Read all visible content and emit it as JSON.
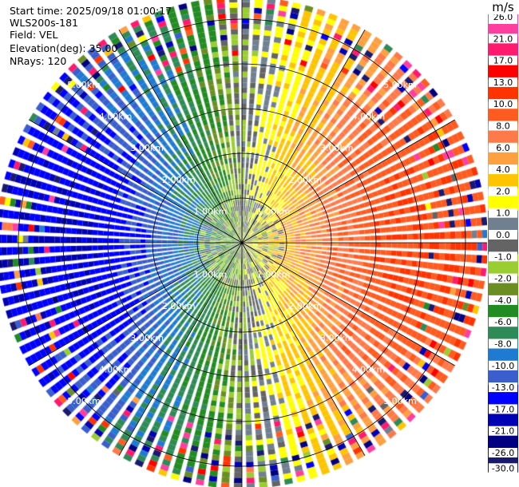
{
  "info": {
    "start_time": "Start time: 2025/09/18 01:00:17",
    "instrument": "WLS200s-181",
    "field": "Field: VEL",
    "elevation": "Elevation(deg): 35.00",
    "nrays": "NRays: 120"
  },
  "chart_data": {
    "type": "heatmap",
    "projection": "polar PPI",
    "field": "VEL",
    "units": "m/s",
    "elevation_deg": 35.0,
    "n_rays": 120,
    "max_range_km": 5.5,
    "range_rings_km": [
      1,
      2,
      3,
      4,
      5
    ],
    "range_ring_labels": [
      "1.00km",
      "2.00km",
      "3.00km",
      "4.00km",
      "5.00km"
    ],
    "spokes_deg": [
      0,
      30,
      60,
      90,
      120,
      150,
      180,
      210,
      240,
      270,
      300,
      330
    ],
    "colorbar": {
      "label": "m/s",
      "ticks": [
        "26.0",
        "21.0",
        "17.0",
        "13.0",
        "10.0",
        "8.0",
        "6.0",
        "4.0",
        "2.0",
        "1.0",
        "0.0",
        "-1.0",
        "-2.0",
        "-4.0",
        "-6.0",
        "-8.0",
        "-10.0",
        "-13.0",
        "-17.0",
        "-21.0",
        "-26.0",
        "-30.0"
      ],
      "bins": [
        {
          "min": 26.0,
          "color": "#ff3fa0"
        },
        {
          "min": 21.0,
          "color": "#ff1a6e"
        },
        {
          "min": 17.0,
          "color": "#ff0000"
        },
        {
          "min": 13.0,
          "color": "#ff3300"
        },
        {
          "min": 10.0,
          "color": "#ff5a1f"
        },
        {
          "min": 8.0,
          "color": "#ff7a4a"
        },
        {
          "min": 6.0,
          "color": "#ffa040"
        },
        {
          "min": 4.0,
          "color": "#ffc400"
        },
        {
          "min": 2.0,
          "color": "#ffff00"
        },
        {
          "min": 1.0,
          "color": "#708090"
        },
        {
          "min": 0.0,
          "color": "#646464"
        },
        {
          "min": -1.0,
          "color": "#9acd32"
        },
        {
          "min": -2.0,
          "color": "#6b8e23"
        },
        {
          "min": -4.0,
          "color": "#228b22"
        },
        {
          "min": -6.0,
          "color": "#2e8b57"
        },
        {
          "min": -8.0,
          "color": "#1f7bd1"
        },
        {
          "min": -10.0,
          "color": "#3a5fcd"
        },
        {
          "min": -13.0,
          "color": "#0000ff"
        },
        {
          "min": -17.0,
          "color": "#0000b4"
        },
        {
          "min": -21.0,
          "color": "#000080"
        },
        {
          "min": -26.0,
          "color": "#191970"
        }
      ]
    },
    "velocity_pattern": {
      "description_peak_positive": 13.0,
      "peak_positive_azimuth_deg": 90,
      "peak_negative": -13.0,
      "peak_negative_azimuth_deg": 270,
      "near_zero_azimuths_deg": [
        0,
        180
      ]
    }
  }
}
